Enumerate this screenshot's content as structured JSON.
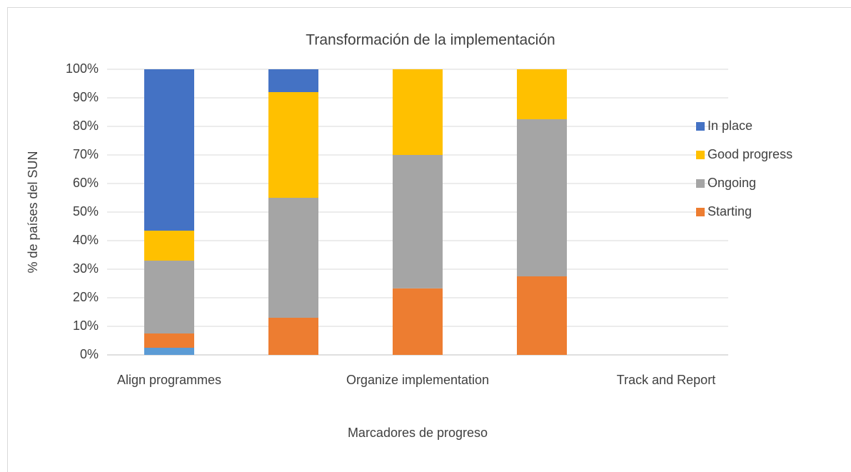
{
  "chart_data": {
    "type": "bar",
    "stacked": true,
    "title": "Transformación de la implementación",
    "y_label": "% de países del SUN",
    "x_label": "Marcadores de progreso",
    "categories": [
      "Align programmes",
      null,
      "Organize implementation",
      null,
      "Track and Report"
    ],
    "series": [
      {
        "color": "#5b9bd5",
        "values": [
          2.5,
          0,
          0,
          0,
          null
        ]
      },
      {
        "name": "Starting",
        "color": "#ed7d31",
        "values": [
          5,
          13,
          23.3,
          27.5,
          null
        ]
      },
      {
        "name": "Ongoing",
        "color": "#a5a5a5",
        "values": [
          25.5,
          42,
          46.7,
          55,
          null
        ]
      },
      {
        "name": "Good progress",
        "color": "#ffc000",
        "values": [
          10.5,
          37,
          30,
          17.5,
          null
        ]
      },
      {
        "name": "In place",
        "color": "#4472c4",
        "values": [
          56.5,
          8,
          0,
          0,
          null
        ]
      }
    ],
    "ylim": [
      0,
      100
    ],
    "yticks": [
      {
        "value": 0,
        "label": "0%"
      },
      {
        "value": 10,
        "label": "10%"
      },
      {
        "value": 20,
        "label": "20%"
      },
      {
        "value": 30,
        "label": "30%"
      },
      {
        "value": 40,
        "label": "40%"
      },
      {
        "value": 50,
        "label": "50%"
      },
      {
        "value": 60,
        "label": "60%"
      },
      {
        "value": 70,
        "label": "70%"
      },
      {
        "value": 80,
        "label": "80%"
      },
      {
        "value": 90,
        "label": "90%"
      },
      {
        "value": 100,
        "label": "100%"
      }
    ],
    "grid": true,
    "legend": "right"
  }
}
